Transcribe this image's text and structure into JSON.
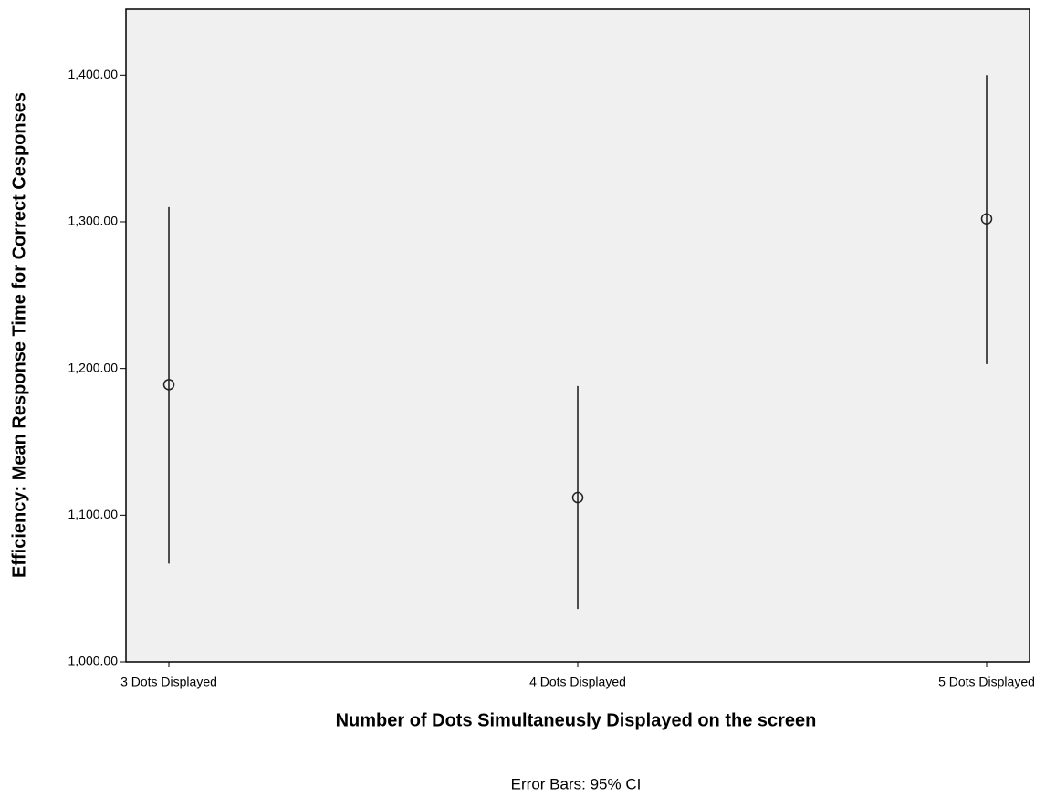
{
  "chart_data": {
    "type": "errorbar",
    "ylabel": "Efficiency: Mean Response Time for Correct Cesponses",
    "xlabel": "Number of Dots Simultaneusly Displayed on the screen",
    "footnote": "Error Bars: 95% CI",
    "categories": [
      "3 Dots Displayed",
      "4 Dots Displayed",
      "5 Dots Displayed"
    ],
    "values": [
      1189,
      1112,
      1302
    ],
    "lower": [
      1067,
      1036,
      1203
    ],
    "upper": [
      1310,
      1188,
      1400
    ],
    "color": "#4d4d4d",
    "ylim": [
      1000,
      1445
    ],
    "yticks": [
      {
        "value": 1000,
        "label": "1,000.00"
      },
      {
        "value": 1100,
        "label": "1,100.00"
      },
      {
        "value": 1200,
        "label": "1,200.00"
      },
      {
        "value": 1300,
        "label": "1,300.00"
      },
      {
        "value": 1400,
        "label": "1,400.00"
      }
    ]
  }
}
